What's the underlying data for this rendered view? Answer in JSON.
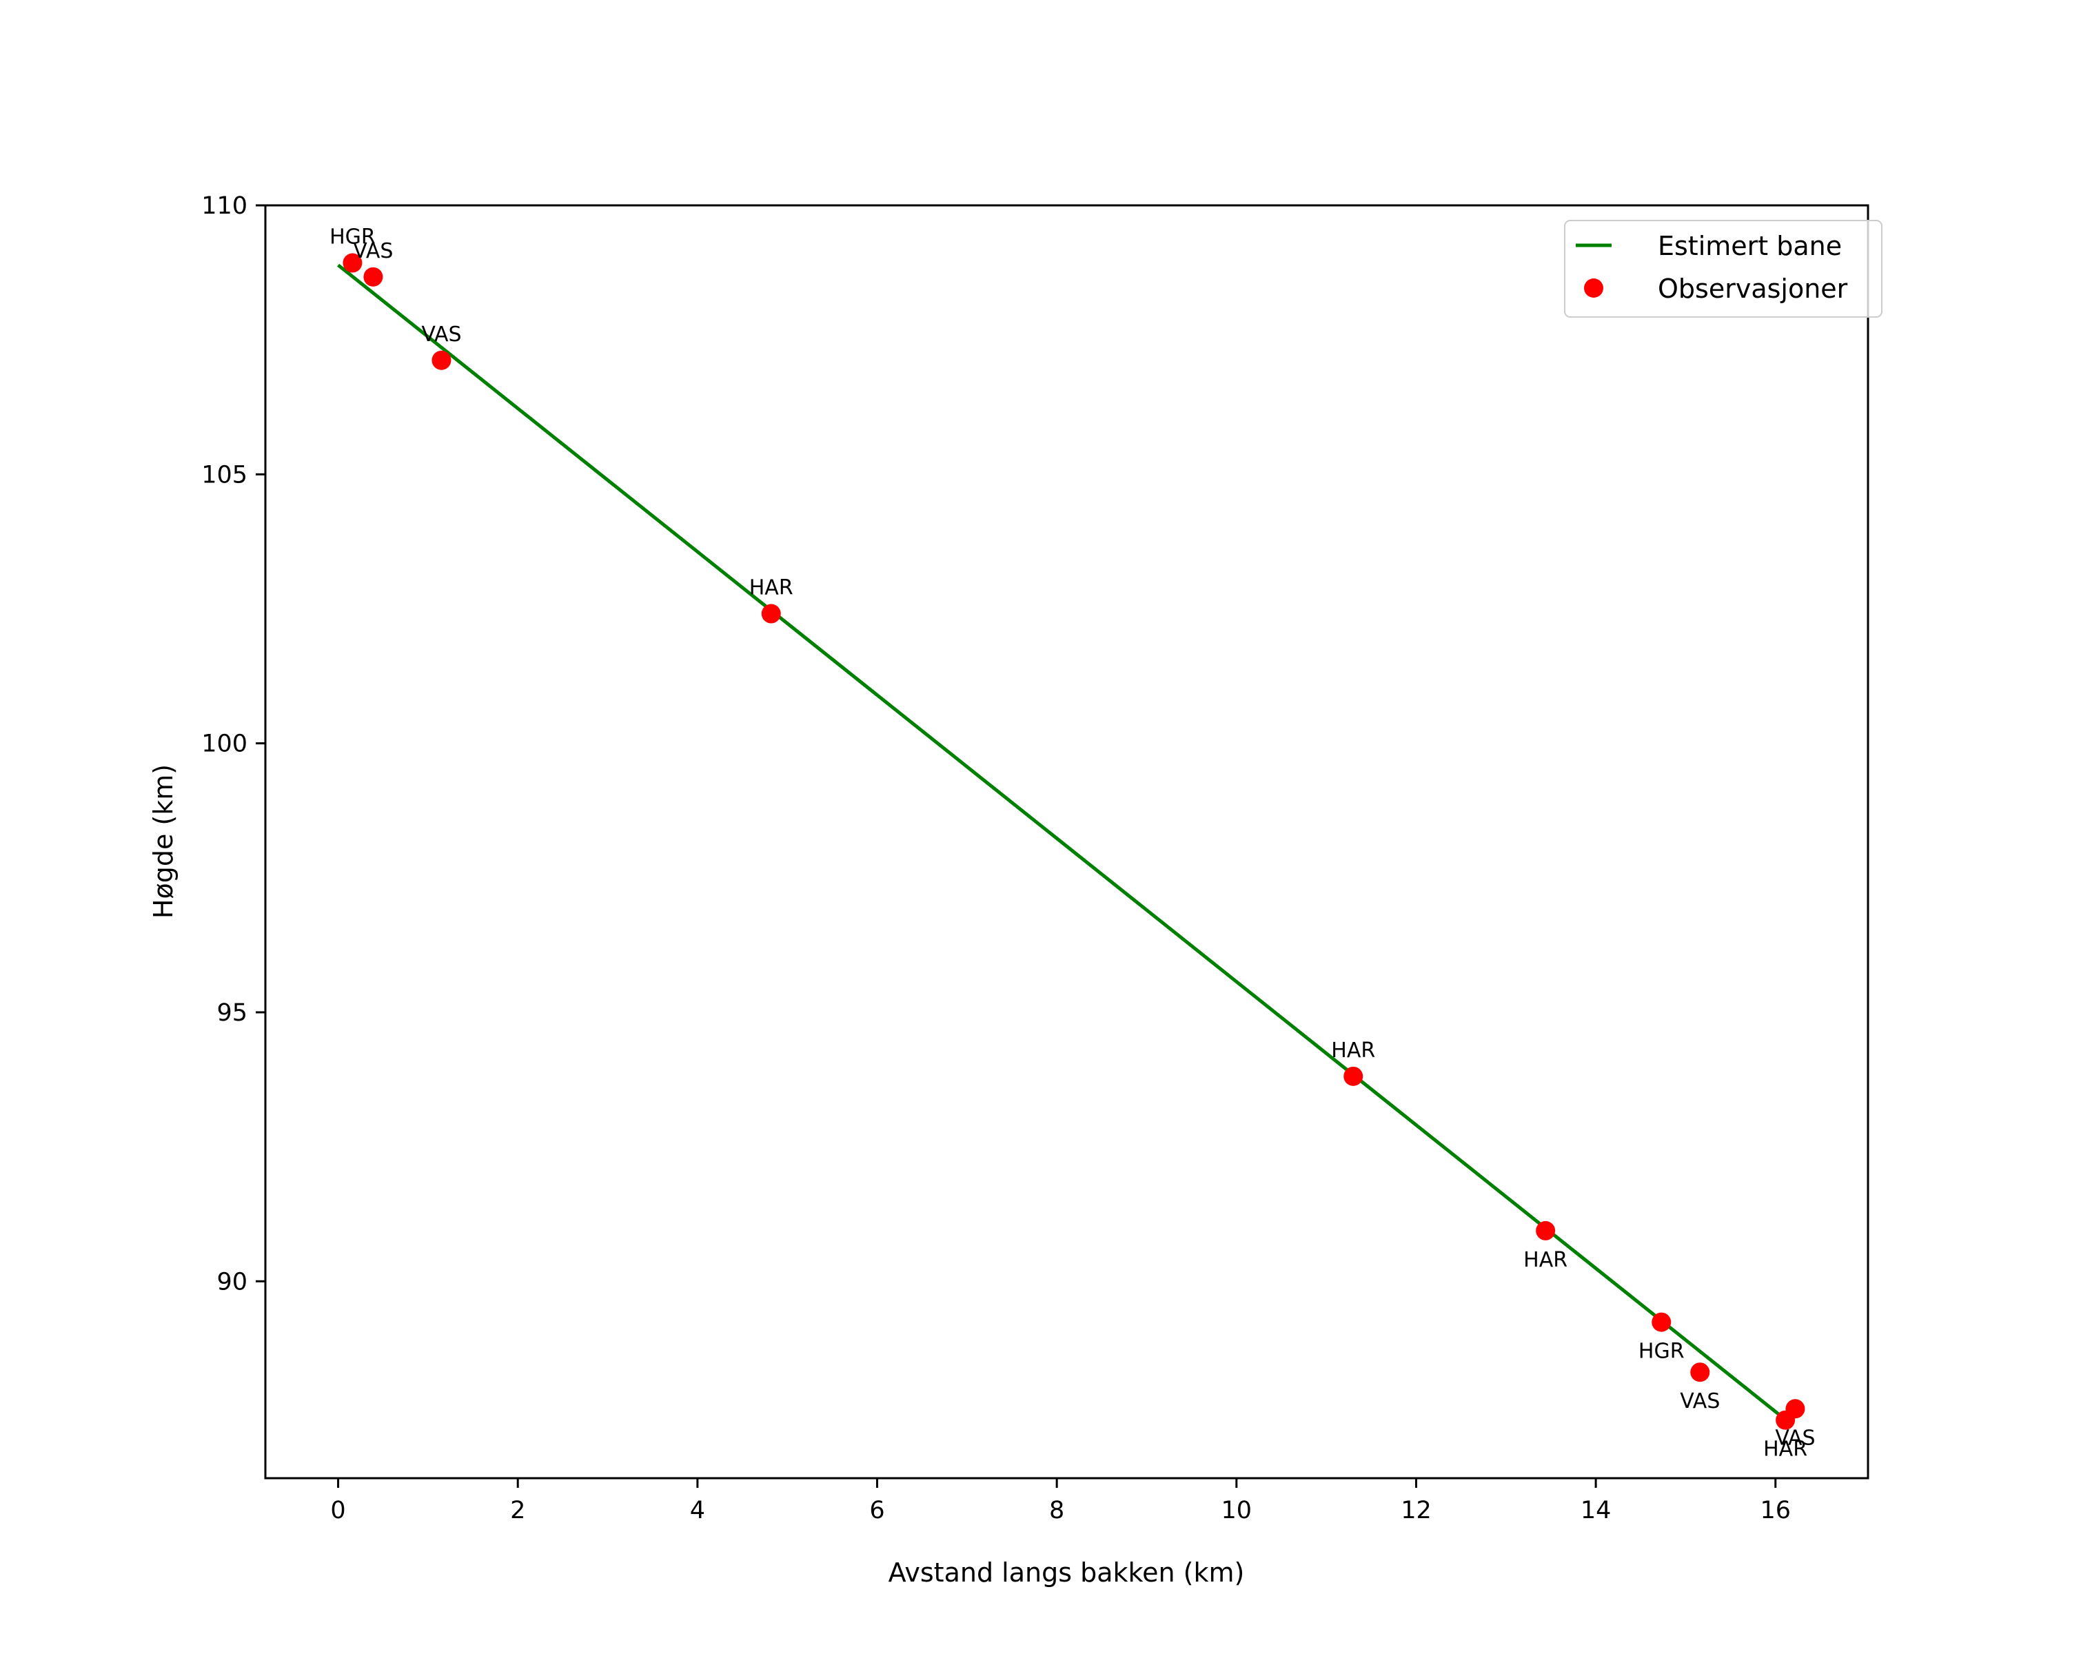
{
  "chart_data": {
    "type": "line+scatter",
    "title": "",
    "xlabel": "Avstand langs bakken (km)",
    "ylabel": "Høgde (km)",
    "xlim": [
      -0.81,
      17.03
    ],
    "ylim": [
      86.34,
      110.0
    ],
    "xticks": [
      0,
      2,
      4,
      6,
      8,
      10,
      12,
      14,
      16
    ],
    "yticks": [
      90,
      95,
      100,
      105,
      110
    ],
    "grid": false,
    "legend_position": "upper right",
    "series": [
      {
        "name": "Estimert bane",
        "type": "line",
        "color": "#008000",
        "x": [
          0.0,
          16.05
        ],
        "y": [
          108.89,
          87.51
        ]
      },
      {
        "name": "Observasjoner",
        "type": "scatter",
        "color": "#ff0000",
        "points": [
          {
            "x": 0.16,
            "y": 108.93,
            "label": "HGR",
            "label_pos": "above"
          },
          {
            "x": 0.39,
            "y": 108.67,
            "label": "VAS",
            "label_pos": "above"
          },
          {
            "x": 1.15,
            "y": 107.12,
            "label": "VAS",
            "label_pos": "above"
          },
          {
            "x": 4.82,
            "y": 102.41,
            "label": "HAR",
            "label_pos": "above"
          },
          {
            "x": 11.3,
            "y": 93.81,
            "label": "HAR",
            "label_pos": "above"
          },
          {
            "x": 13.44,
            "y": 90.94,
            "label": "HAR",
            "label_pos": "below"
          },
          {
            "x": 14.73,
            "y": 89.24,
            "label": "HGR",
            "label_pos": "below"
          },
          {
            "x": 15.16,
            "y": 88.31,
            "label": "VAS",
            "label_pos": "below"
          },
          {
            "x": 16.22,
            "y": 87.63,
            "label": "VAS",
            "label_pos": "below"
          },
          {
            "x": 16.11,
            "y": 87.42,
            "label": "HAR",
            "label_pos": "below"
          }
        ]
      }
    ]
  },
  "legend": {
    "items": [
      {
        "label": "Estimert bane",
        "marker": "line",
        "color": "#008000"
      },
      {
        "label": "Observasjoner",
        "marker": "dot",
        "color": "#ff0000"
      }
    ]
  }
}
